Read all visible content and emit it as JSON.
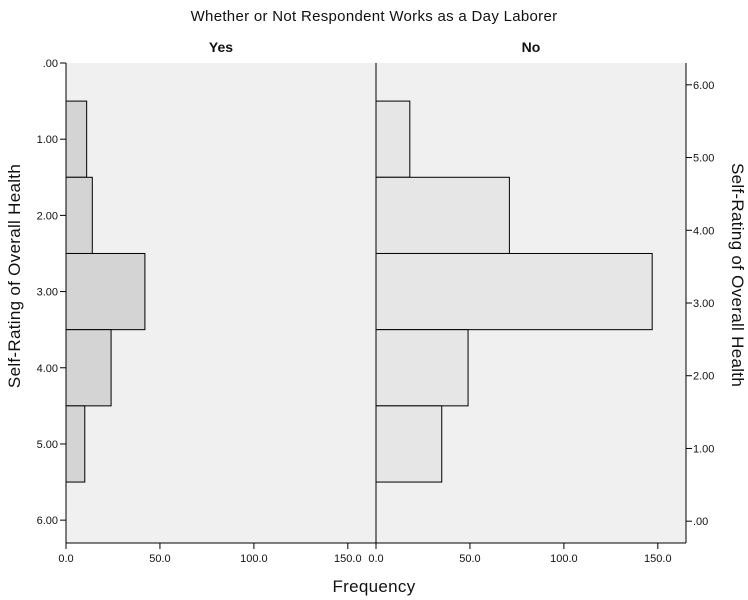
{
  "chart_data": {
    "type": "bar",
    "orientation": "horizontal",
    "title": "Whether or Not Respondent Works as a Day Laborer",
    "xlabel": "Frequency",
    "ylabel_left": "Self-Rating of Overall Health",
    "ylabel_right": "Self-Rating of Overall Health",
    "xlim": [
      0,
      165
    ],
    "x_ticks": [
      "0.0",
      "50.0",
      "100.0",
      "150.0"
    ],
    "ylim_left": [
      0,
      6.3
    ],
    "y_ticks_left": [
      ".00",
      "1.00",
      "2.00",
      "3.00",
      "4.00",
      "5.00",
      "6.00"
    ],
    "ylim_right": [
      -0.3,
      6.3
    ],
    "y_ticks_right": [
      "6.00",
      "5.00",
      "4.00",
      "3.00",
      "2.00",
      "1.00",
      ".00"
    ],
    "categories": [
      1,
      2,
      3,
      4,
      5
    ],
    "series": [
      {
        "name": "Yes",
        "values": [
          11,
          14,
          42,
          24,
          10
        ]
      },
      {
        "name": "No",
        "values": [
          18,
          71,
          147,
          49,
          35
        ]
      }
    ],
    "colors": {
      "Yes": "#d4d4d4",
      "No": "#e6e6e6",
      "panel_background": "#f0f0f0",
      "bar_stroke": "#000000"
    },
    "grid": false,
    "legend": "none"
  }
}
